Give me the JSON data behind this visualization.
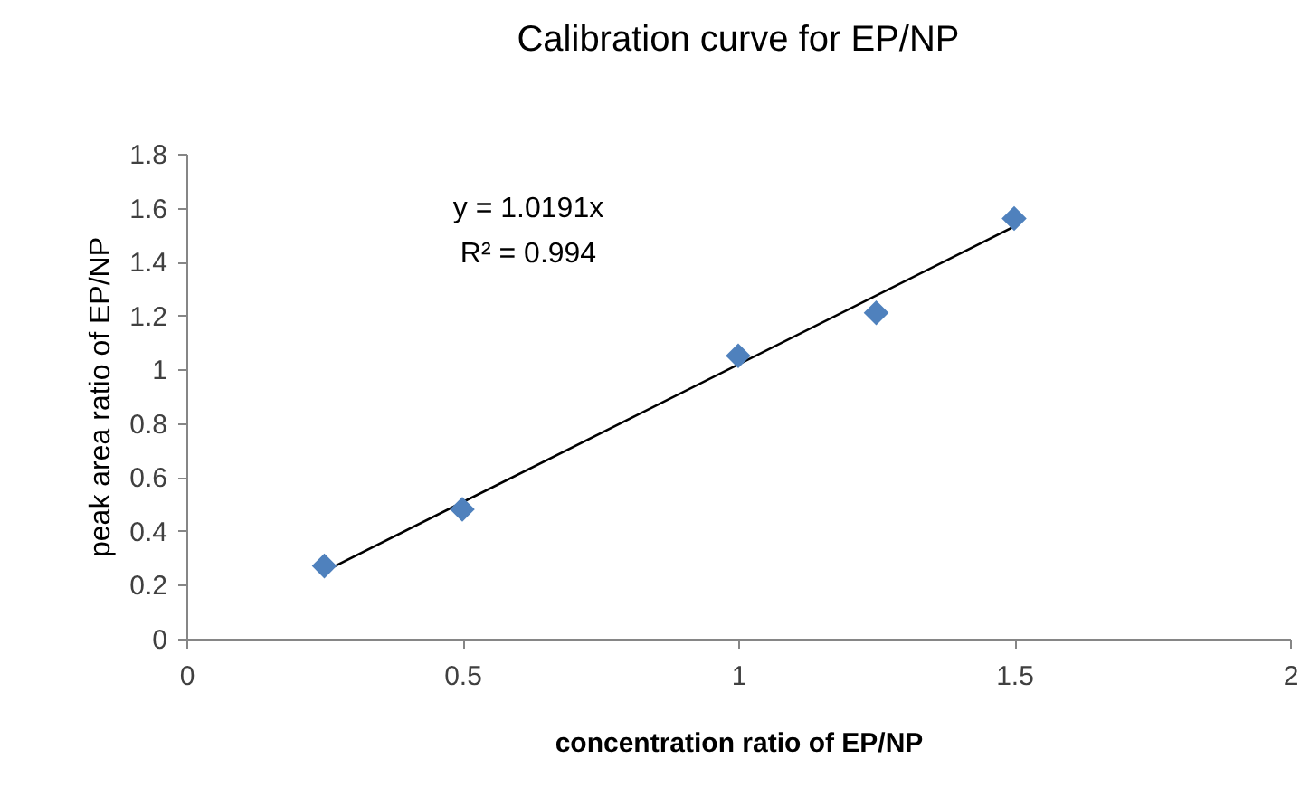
{
  "chart_data": {
    "type": "scatter",
    "title": "Calibration curve for EP/NP",
    "xlabel": "concentration ratio of EP/NP",
    "ylabel": "peak area ratio of EP/NP",
    "x": [
      0.25,
      0.5,
      1.0,
      1.25,
      1.5
    ],
    "series": [
      {
        "type": "scatter",
        "color": "#4f81bd",
        "marker": "diamond",
        "values": [
          0.27,
          0.48,
          1.05,
          1.21,
          1.56
        ]
      },
      {
        "type": "line",
        "color": "#000000",
        "x": [
          0.25,
          1.5
        ],
        "values": [
          0.25,
          1.53
        ],
        "marker": "none",
        "line_style": "solid"
      }
    ],
    "xlim": [
      0,
      2
    ],
    "xticks": [
      0,
      0.5,
      1,
      1.5,
      2
    ],
    "ylim": [
      0,
      1.8
    ],
    "yticks": [
      0,
      0.2,
      0.4,
      0.6,
      0.8,
      1,
      1.2,
      1.4,
      1.6,
      1.8
    ],
    "grid": false,
    "legend": false,
    "annotations": [
      "y = 1.0191x",
      "R² = 0.994"
    ]
  }
}
